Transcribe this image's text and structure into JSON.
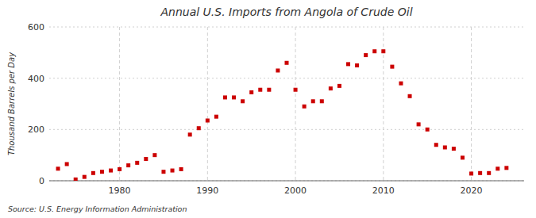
{
  "chart_data": {
    "type": "scatter",
    "title": "Annual U.S. Imports from Angola of Crude Oil",
    "ylabel": "Thousand Barrels per Day",
    "annotations": [
      "Source: U.S. Energy Information Administration"
    ],
    "x": [
      1973,
      1974,
      1975,
      1976,
      1977,
      1978,
      1979,
      1980,
      1981,
      1982,
      1983,
      1984,
      1985,
      1986,
      1987,
      1988,
      1989,
      1990,
      1991,
      1992,
      1993,
      1994,
      1995,
      1996,
      1997,
      1998,
      1999,
      2000,
      2001,
      2002,
      2003,
      2004,
      2005,
      2006,
      2007,
      2008,
      2009,
      2010,
      2011,
      2012,
      2013,
      2014,
      2015,
      2016,
      2017,
      2018,
      2019,
      2020,
      2021,
      2022,
      2023,
      2024
    ],
    "values": [
      47,
      65,
      5,
      15,
      30,
      35,
      40,
      45,
      60,
      70,
      85,
      100,
      35,
      40,
      45,
      180,
      205,
      235,
      250,
      325,
      325,
      310,
      345,
      355,
      355,
      430,
      460,
      355,
      290,
      310,
      310,
      360,
      370,
      455,
      450,
      490,
      505,
      505,
      445,
      380,
      330,
      220,
      200,
      140,
      130,
      125,
      90,
      28,
      30,
      30,
      47,
      50
    ],
    "color": "#cc0000",
    "marker": "square",
    "xlim": [
      1972,
      2026
    ],
    "xticks": [
      1980,
      1990,
      2000,
      2010,
      2020
    ],
    "ylim": [
      0,
      600
    ],
    "yticks": [
      0,
      200,
      400,
      600
    ],
    "grid": true
  }
}
